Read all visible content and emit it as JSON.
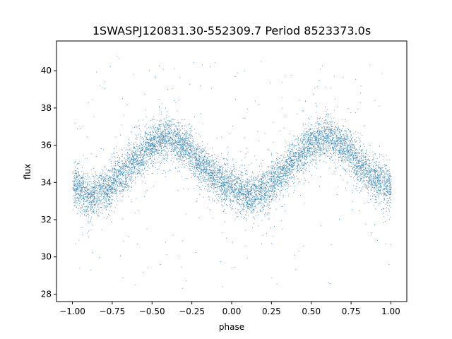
{
  "chart_data": {
    "type": "scatter",
    "title": "1SWASPJ120831.30-552309.7 Period 8523373.0s",
    "xlabel": "phase",
    "ylabel": "flux",
    "xlim": [
      -1.1,
      1.1
    ],
    "ylim": [
      27.6,
      41.6
    ],
    "x_ticks": [
      -1.0,
      -0.75,
      -0.5,
      -0.25,
      0.0,
      0.25,
      0.5,
      0.75,
      1.0
    ],
    "x_tick_labels": [
      "−1.00",
      "−0.75",
      "−0.50",
      "−0.25",
      "0.00",
      "0.25",
      "0.50",
      "0.75",
      "1.00"
    ],
    "y_ticks": [
      28,
      30,
      32,
      34,
      36,
      38,
      40
    ],
    "y_tick_labels": [
      "28",
      "30",
      "32",
      "34",
      "36",
      "38",
      "40"
    ],
    "grid": false,
    "point_color": "#1f77b4",
    "phase_range": [
      -1.0,
      1.0
    ],
    "approx_point_count": 9000,
    "trend": {
      "phase": [
        0.0,
        0.1,
        0.2,
        0.3,
        0.4,
        0.5,
        0.6,
        0.7,
        0.8,
        0.9,
        1.0
      ],
      "flux": [
        33.8,
        33.3,
        33.6,
        34.4,
        35.3,
        36.1,
        36.5,
        36.0,
        35.1,
        34.2,
        33.8
      ]
    },
    "scatter_spread": 0.55,
    "outlier_range": [
      28.3,
      40.9
    ]
  }
}
